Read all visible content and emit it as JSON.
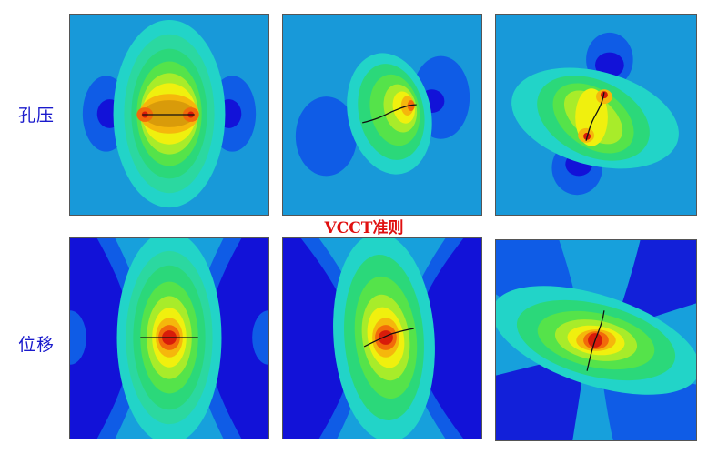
{
  "figure": {
    "center_label": "VCCT准则",
    "rows": [
      {
        "label": "孔压"
      },
      {
        "label": "位移"
      }
    ]
  },
  "colors": {
    "label_blue": "#1a1acc",
    "center_red": "#e01010",
    "contour_scale": [
      "#1212d8",
      "#0f5ce6",
      "#17a0dc",
      "#22d4c8",
      "#2bd87a",
      "#55e34a",
      "#a8ec2a",
      "#f0f00e",
      "#f5b70c",
      "#f26a0a",
      "#d81c0a"
    ]
  }
}
